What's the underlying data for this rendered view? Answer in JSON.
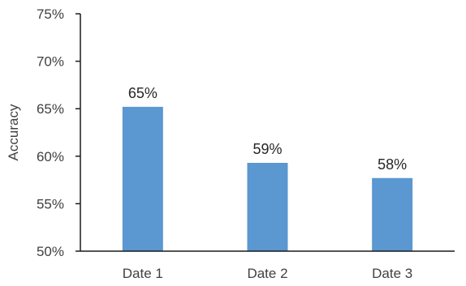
{
  "chart_data": {
    "type": "bar",
    "title": "",
    "xlabel": "",
    "ylabel": "Accuracy",
    "categories": [
      "Date 1",
      "Date 2",
      "Date 3"
    ],
    "values": [
      65.2,
      59.3,
      57.7
    ],
    "data_labels": [
      "65%",
      "59%",
      "58%"
    ],
    "ylim": [
      50,
      75
    ],
    "y_ticks": [
      50,
      55,
      60,
      65,
      70,
      75
    ],
    "y_tick_labels": [
      "50%",
      "55%",
      "60%",
      "65%",
      "70%",
      "75%"
    ],
    "grid": false,
    "legend": "none",
    "bar_color": "#5b97d0"
  }
}
